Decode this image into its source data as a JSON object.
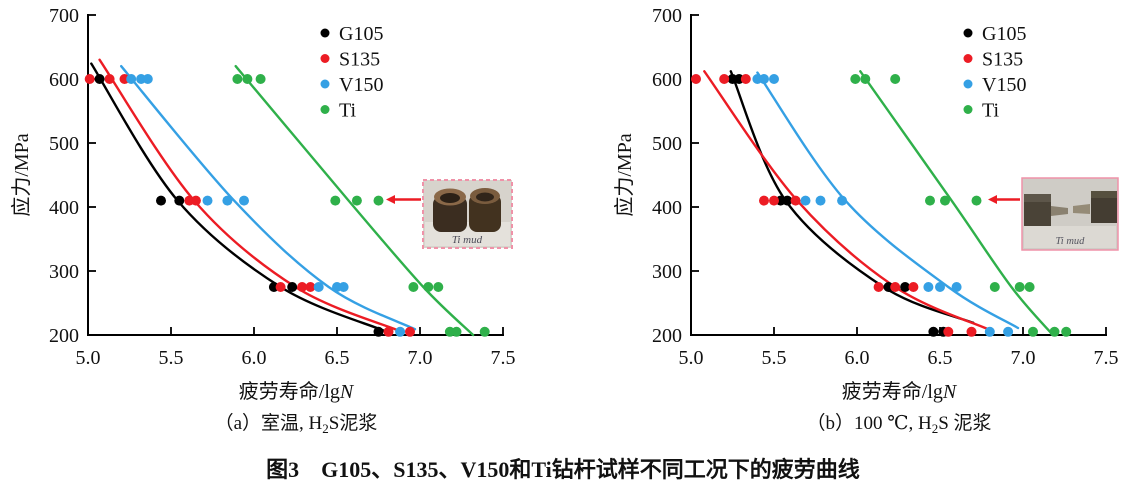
{
  "figure_title": "图3　G105、S135、V150和Ti钻杆试样不同工况下的疲劳曲线",
  "colors": {
    "G105": "#000000",
    "S135": "#ec1c24",
    "V150": "#35a0e4",
    "Ti": "#2fb04a",
    "arrow": "#ec1c24",
    "photo_border": "#ef92a8"
  },
  "legend": [
    "G105",
    "S135",
    "V150",
    "Ti"
  ],
  "chart_data": [
    {
      "type": "scatter",
      "caption": {
        "pre": "（a）室温, H",
        "sub": "2",
        "post": "S泥浆"
      },
      "xlabel": {
        "pre": "疲劳寿命/lg",
        "italic": "N"
      },
      "ylabel": "应力/MPa",
      "xlim": [
        5.0,
        7.5
      ],
      "ylim": [
        200,
        700
      ],
      "xticks": [
        "5.0",
        "5.5",
        "6.0",
        "6.5",
        "7.0",
        "7.5"
      ],
      "yticks": [
        "700",
        "600",
        "500",
        "400",
        "300",
        "200"
      ],
      "grid": false,
      "legend_position": "upper-right-inside",
      "photo_label": "Ti mud",
      "series": [
        {
          "name": "G105",
          "color": "#000000",
          "points": [
            [
              5.07,
              600
            ],
            [
              5.44,
              410
            ],
            [
              5.55,
              410
            ],
            [
              6.12,
              275
            ],
            [
              6.23,
              275
            ],
            [
              6.75,
              205
            ]
          ],
          "curve": [
            [
              5.02,
              624
            ],
            [
              5.54,
              410
            ],
            [
              6.16,
              275
            ],
            [
              6.78,
              207
            ]
          ]
        },
        {
          "name": "S135",
          "color": "#ec1c24",
          "points": [
            [
              5.01,
              600
            ],
            [
              5.13,
              600
            ],
            [
              5.22,
              600
            ],
            [
              5.61,
              410
            ],
            [
              5.65,
              410
            ],
            [
              6.16,
              275
            ],
            [
              6.29,
              275
            ],
            [
              6.34,
              275
            ],
            [
              6.81,
              205
            ],
            [
              6.94,
              205
            ]
          ],
          "curve": [
            [
              5.07,
              630
            ],
            [
              5.64,
              410
            ],
            [
              6.25,
              275
            ],
            [
              6.87,
              207
            ]
          ]
        },
        {
          "name": "V150",
          "color": "#35a0e4",
          "points": [
            [
              5.26,
              600
            ],
            [
              5.32,
              600
            ],
            [
              5.36,
              600
            ],
            [
              5.72,
              410
            ],
            [
              5.84,
              410
            ],
            [
              5.94,
              410
            ],
            [
              6.39,
              275
            ],
            [
              6.5,
              275
            ],
            [
              6.54,
              275
            ],
            [
              6.88,
              205
            ]
          ],
          "curve": [
            [
              5.2,
              620
            ],
            [
              5.88,
              410
            ],
            [
              6.45,
              275
            ],
            [
              6.97,
              209
            ]
          ]
        },
        {
          "name": "Ti",
          "color": "#2fb04a",
          "points": [
            [
              5.9,
              600
            ],
            [
              5.96,
              600
            ],
            [
              6.04,
              600
            ],
            [
              6.49,
              410
            ],
            [
              6.62,
              410
            ],
            [
              6.75,
              410
            ],
            [
              6.96,
              275
            ],
            [
              7.05,
              275
            ],
            [
              7.11,
              275
            ],
            [
              7.18,
              205
            ],
            [
              7.22,
              205
            ],
            [
              7.39,
              205
            ]
          ],
          "curve": [
            [
              5.89,
              620
            ],
            [
              6.57,
              410
            ],
            [
              7.02,
              275
            ],
            [
              7.32,
              200
            ]
          ]
        }
      ]
    },
    {
      "type": "scatter",
      "caption": {
        "pre": "（b）100 ℃, H",
        "sub": "2",
        "post": "S 泥浆"
      },
      "xlabel": {
        "pre": "疲劳寿命/lg",
        "italic": "N"
      },
      "ylabel": "应力/MPa",
      "xlim": [
        5.0,
        7.5
      ],
      "ylim": [
        200,
        700
      ],
      "xticks": [
        "5.0",
        "5.5",
        "6.0",
        "6.5",
        "7.0",
        "7.5"
      ],
      "yticks": [
        "700",
        "600",
        "500",
        "400",
        "300",
        "200"
      ],
      "grid": false,
      "legend_position": "upper-right-inside",
      "photo_label": "Ti mud",
      "series": [
        {
          "name": "G105",
          "color": "#000000",
          "points": [
            [
              5.25,
              600
            ],
            [
              5.29,
              600
            ],
            [
              5.54,
              410
            ],
            [
              5.58,
              410
            ],
            [
              6.19,
              275
            ],
            [
              6.29,
              275
            ],
            [
              6.46,
              205
            ],
            [
              6.52,
              205
            ]
          ],
          "curve": [
            [
              5.24,
              612
            ],
            [
              5.57,
              410
            ],
            [
              6.16,
              275
            ],
            [
              6.7,
              219
            ]
          ]
        },
        {
          "name": "S135",
          "color": "#ec1c24",
          "points": [
            [
              5.03,
              600
            ],
            [
              5.2,
              600
            ],
            [
              5.33,
              600
            ],
            [
              5.44,
              410
            ],
            [
              5.5,
              410
            ],
            [
              5.63,
              410
            ],
            [
              6.13,
              275
            ],
            [
              6.23,
              275
            ],
            [
              6.34,
              275
            ],
            [
              6.55,
              205
            ],
            [
              6.69,
              205
            ]
          ],
          "curve": [
            [
              5.08,
              612
            ],
            [
              5.64,
              410
            ],
            [
              6.23,
              275
            ],
            [
              6.8,
              208
            ]
          ]
        },
        {
          "name": "V150",
          "color": "#35a0e4",
          "points": [
            [
              5.4,
              600
            ],
            [
              5.44,
              600
            ],
            [
              5.5,
              600
            ],
            [
              5.69,
              410
            ],
            [
              5.78,
              410
            ],
            [
              5.91,
              410
            ],
            [
              6.43,
              275
            ],
            [
              6.5,
              275
            ],
            [
              6.6,
              275
            ],
            [
              6.8,
              205
            ],
            [
              6.91,
              205
            ]
          ],
          "curve": [
            [
              5.4,
              610
            ],
            [
              5.93,
              410
            ],
            [
              6.55,
              275
            ],
            [
              6.97,
              211
            ]
          ]
        },
        {
          "name": "Ti",
          "color": "#2fb04a",
          "points": [
            [
              5.99,
              600
            ],
            [
              6.05,
              600
            ],
            [
              6.23,
              600
            ],
            [
              6.44,
              410
            ],
            [
              6.53,
              410
            ],
            [
              6.72,
              410
            ],
            [
              6.83,
              275
            ],
            [
              6.98,
              275
            ],
            [
              7.04,
              275
            ],
            [
              7.06,
              205
            ],
            [
              7.19,
              205
            ],
            [
              7.26,
              205
            ]
          ],
          "curve": [
            [
              6.02,
              612
            ],
            [
              6.57,
              410
            ],
            [
              6.93,
              275
            ],
            [
              7.18,
              200
            ]
          ]
        }
      ]
    }
  ]
}
